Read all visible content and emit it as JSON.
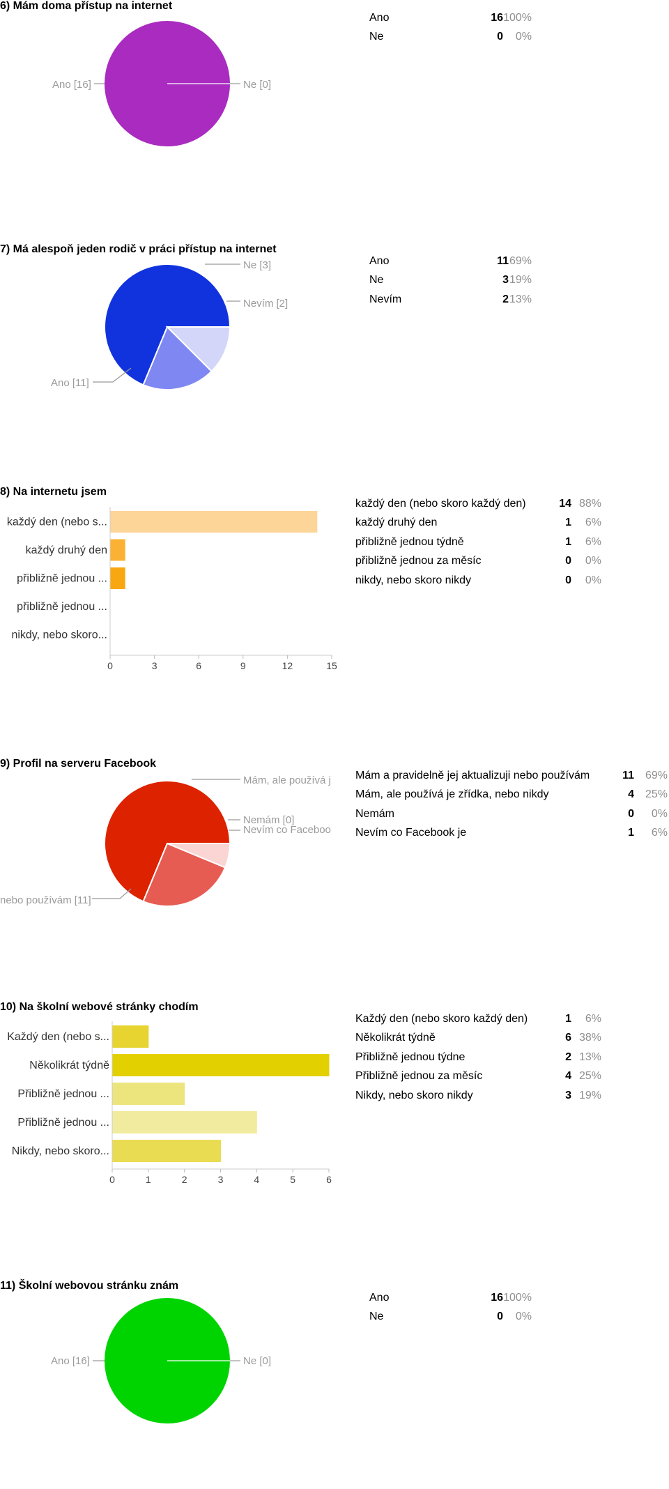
{
  "chart_data": [
    {
      "type": "pie",
      "title": "6) Mám doma přístup na internet",
      "categories": [
        "Ano",
        "Ne"
      ],
      "values": [
        16,
        0
      ],
      "percents": [
        "100%",
        "0%"
      ],
      "colors": [
        "#a92bbf",
        "#d9a4e3"
      ],
      "slice_labels": [
        "Ano [16]",
        "Ne [0]"
      ]
    },
    {
      "type": "pie",
      "title": "7) Má alespoň jeden rodič v práci přístup na internet",
      "categories": [
        "Ano",
        "Ne",
        "Nevím"
      ],
      "values": [
        11,
        3,
        2
      ],
      "percents": [
        "69%",
        "19%",
        "13%"
      ],
      "colors": [
        "#1133dd",
        "#7f87f3",
        "#d3d6f8"
      ],
      "slice_labels": [
        "Ano [11]",
        "Ne [3]",
        "Nevím [2]"
      ]
    },
    {
      "type": "bar",
      "orientation": "horizontal",
      "title": "8) Na internetu jsem",
      "categories": [
        "každý den (nebo skoro každý den)",
        "každý druhý den",
        "přibližně jednou týdně",
        "přibližně jednou za měsíc",
        "nikdy, nebo skoro nikdy"
      ],
      "axis_labels": [
        "každý den (nebo s...",
        "každý druhý den",
        "přibližně jednou ...",
        "přibližně jednou ...",
        "nikdy, nebo skoro..."
      ],
      "values": [
        14,
        1,
        1,
        0,
        0
      ],
      "percents": [
        "88%",
        "6%",
        "6%",
        "0%",
        "0%"
      ],
      "colors": [
        "#fdd598",
        "#fbb234",
        "#f9a710",
        "#f9a710",
        "#f9a710"
      ],
      "xlim": [
        0,
        15
      ],
      "xticks": [
        "0",
        "3",
        "6",
        "9",
        "12",
        "15"
      ]
    },
    {
      "type": "pie",
      "title": "9) Profil na serveru Facebook",
      "categories": [
        "Mám a pravidelně jej aktualizuji nebo používám",
        "Mám, ale používá je zřídka, nebo nikdy",
        "Nemám",
        "Nevím co Facebook je"
      ],
      "values": [
        11,
        4,
        0,
        1
      ],
      "percents": [
        "69%",
        "25%",
        "0%",
        "6%"
      ],
      "colors": [
        "#dd2200",
        "#e75c52",
        "#f5b5b0",
        "#fbd5d3"
      ],
      "slice_labels": [
        "nebo používám [11]",
        "Mám, ale používá j",
        "Nemám [0]",
        "Nevím co Faceboo"
      ]
    },
    {
      "type": "bar",
      "orientation": "horizontal",
      "title": "10) Na školní webové stránky chodím",
      "categories": [
        "Každý den (nebo skoro každý den)",
        "Několikrát týdně",
        "Přibližně jednou týdne",
        "Přibližně jednou za měsíc",
        "Nikdy, nebo skoro nikdy"
      ],
      "axis_labels": [
        "Každý den (nebo s...",
        "Několikrát týdně",
        "Přibližně jednou ...",
        "Přibližně jednou ...",
        "Nikdy, nebo skoro..."
      ],
      "values": [
        1,
        6,
        2,
        4,
        3
      ],
      "percents": [
        "6%",
        "38%",
        "13%",
        "25%",
        "19%"
      ],
      "colors": [
        "#e7d430",
        "#e3d000",
        "#ece57d",
        "#f1eb9f",
        "#eadc52"
      ],
      "xlim": [
        0,
        6
      ],
      "xticks": [
        "0",
        "1",
        "2",
        "3",
        "4",
        "5",
        "6"
      ]
    },
    {
      "type": "pie",
      "title": "11) Školní webovou stránku znám",
      "categories": [
        "Ano",
        "Ne"
      ],
      "values": [
        16,
        0
      ],
      "percents": [
        "100%",
        "0%"
      ],
      "colors": [
        "#00d400",
        "#9ff09f"
      ],
      "slice_labels": [
        "Ano [16]",
        "Ne [0]"
      ]
    }
  ]
}
